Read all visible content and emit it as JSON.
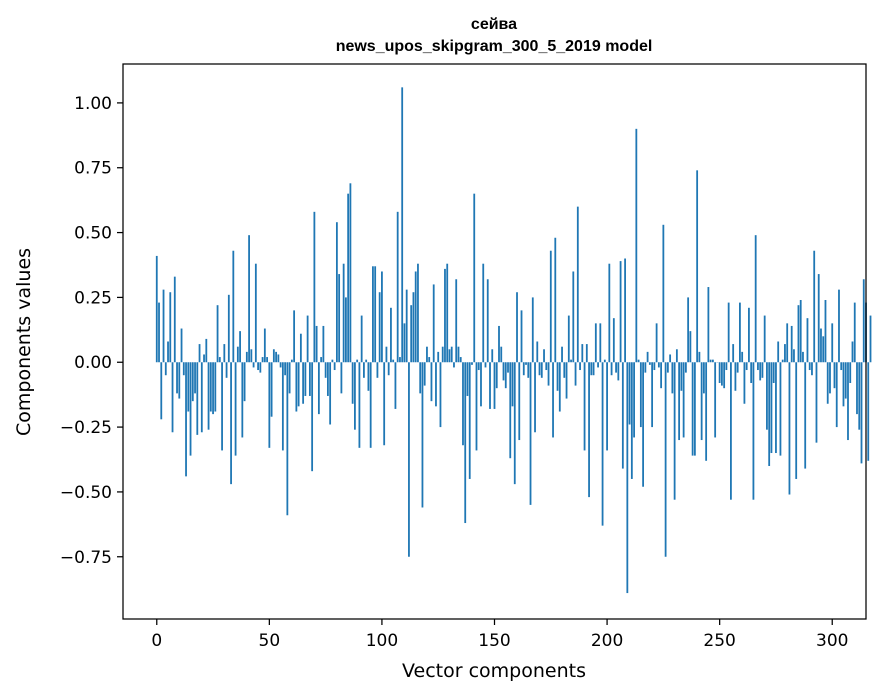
{
  "chart_data": {
    "type": "bar",
    "title": "сейва",
    "subtitle": "news_upos_skipgram_300_5_2019 model",
    "xlabel": "Vector components",
    "ylabel": "Components values",
    "xlim": [
      -15,
      315
    ],
    "ylim": [
      -0.99,
      1.15
    ],
    "xticks": [
      0,
      50,
      100,
      150,
      200,
      250,
      300
    ],
    "yticks": [
      -0.75,
      -0.5,
      -0.25,
      0.0,
      0.25,
      0.5,
      0.75,
      1.0
    ],
    "ytick_labels": [
      "−0.75",
      "−0.50",
      "−0.25",
      "0.00",
      "0.25",
      "0.50",
      "0.75",
      "1.00"
    ],
    "bar_color": "#1f77b4",
    "values": [
      0.41,
      0.23,
      -0.22,
      0.28,
      -0.05,
      0.08,
      0.27,
      -0.27,
      0.33,
      -0.12,
      -0.14,
      0.13,
      -0.05,
      -0.44,
      -0.19,
      -0.36,
      -0.15,
      -0.12,
      -0.28,
      0.07,
      -0.27,
      0.03,
      0.09,
      -0.26,
      -0.19,
      -0.2,
      -0.19,
      0.22,
      0.02,
      -0.34,
      0.07,
      -0.06,
      0.26,
      -0.47,
      0.43,
      -0.36,
      0.06,
      0.12,
      -0.29,
      -0.15,
      0.04,
      0.49,
      0.05,
      -0.02,
      0.38,
      -0.03,
      -0.04,
      0.02,
      0.13,
      0.02,
      -0.33,
      -0.21,
      0.05,
      0.04,
      0.03,
      -0.02,
      -0.34,
      -0.05,
      -0.59,
      -0.12,
      0.01,
      0.2,
      -0.19,
      -0.17,
      0.11,
      -0.16,
      -0.13,
      0.18,
      -0.13,
      -0.42,
      0.58,
      0.14,
      -0.2,
      0.02,
      0.14,
      -0.06,
      -0.13,
      -0.24,
      0.01,
      -0.03,
      0.54,
      0.34,
      -0.12,
      0.38,
      0.25,
      0.65,
      0.69,
      -0.16,
      -0.26,
      0.01,
      -0.33,
      0.18,
      -0.06,
      0.01,
      -0.11,
      -0.33,
      0.37,
      0.37,
      -0.06,
      0.27,
      0.35,
      -0.32,
      0.06,
      -0.05,
      0.21,
      0.01,
      -0.18,
      0.58,
      0.02,
      1.06,
      0.15,
      0.28,
      -0.75,
      0.22,
      0.27,
      0.35,
      0.38,
      -0.12,
      -0.56,
      -0.09,
      0.06,
      0.02,
      -0.15,
      0.3,
      -0.17,
      0.04,
      -0.25,
      0.06,
      0.36,
      0.38,
      0.05,
      0.06,
      -0.02,
      0.32,
      0.06,
      0.02,
      -0.32,
      -0.62,
      -0.13,
      -0.45,
      -0.01,
      0.65,
      -0.34,
      -0.03,
      -0.17,
      0.38,
      -0.02,
      0.32,
      -0.18,
      0.05,
      -0.18,
      -0.1,
      0.14,
      0.06,
      -0.07,
      -0.1,
      -0.04,
      -0.37,
      -0.17,
      -0.47,
      0.27,
      -0.3,
      0.2,
      -0.05,
      -0.01,
      -0.06,
      -0.55,
      0.25,
      -0.27,
      0.08,
      -0.05,
      -0.06,
      0.05,
      -0.03,
      -0.09,
      0.43,
      -0.29,
      0.48,
      -0.11,
      -0.19,
      0.06,
      -0.06,
      -0.14,
      0.18,
      0.01,
      0.35,
      -0.09,
      0.6,
      -0.03,
      0.07,
      -0.34,
      0.07,
      -0.52,
      -0.05,
      -0.05,
      0.15,
      -0.02,
      0.15,
      -0.63,
      0.01,
      -0.34,
      0.38,
      -0.05,
      0.17,
      -0.04,
      -0.07,
      0.39,
      -0.41,
      0.4,
      -0.89,
      -0.24,
      -0.45,
      -0.29,
      0.9,
      0.01,
      -0.25,
      -0.48,
      -0.04,
      0.04,
      -0.01,
      -0.25,
      -0.03,
      0.15,
      -0.02,
      -0.1,
      0.53,
      -0.75,
      -0.04,
      0.03,
      -0.12,
      -0.53,
      0.05,
      -0.3,
      -0.11,
      -0.29,
      -0.04,
      0.25,
      0.12,
      -0.36,
      -0.36,
      0.74,
      0.04,
      -0.3,
      -0.12,
      -0.38,
      0.29,
      0.01,
      0.01,
      -0.29,
      0.0,
      -0.08,
      -0.09,
      -0.1,
      -0.03,
      0.23,
      -0.53,
      0.07,
      -0.11,
      -0.04,
      0.23,
      0.04,
      -0.16,
      -0.03,
      0.21,
      -0.08,
      -0.53,
      0.49,
      -0.03,
      -0.07,
      -0.06,
      0.18,
      -0.26,
      -0.4,
      -0.35,
      -0.08,
      -0.35,
      0.08,
      -0.36,
      0.01,
      0.07,
      0.15,
      -0.51,
      0.14,
      0.05,
      -0.45,
      0.22,
      0.24,
      0.04,
      -0.41,
      0.17,
      -0.03,
      -0.05,
      0.43,
      -0.31,
      0.34,
      0.13,
      0.1,
      0.24,
      -0.16,
      -0.12,
      0.15,
      -0.1,
      -0.25,
      0.28,
      -0.03,
      -0.17,
      -0.14,
      -0.3,
      -0.08,
      0.08,
      0.23,
      -0.2,
      -0.26,
      -0.39,
      0.32,
      0.23,
      -0.38,
      0.18
    ]
  }
}
